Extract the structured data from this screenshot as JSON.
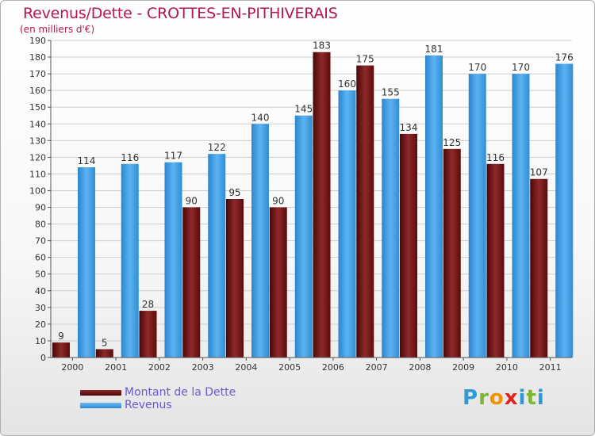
{
  "title": "Revenus/Dette - CROTTES-EN-PITHIVERAIS",
  "subtitle": "(en milliers d'€)",
  "logo_text": "Proxiti",
  "colors": {
    "dette": "#7a0f0f",
    "revenus": "#3d9ee5",
    "title": "#b5174a",
    "legend_text": "#6a5acd"
  },
  "chart_data": {
    "type": "bar",
    "categories": [
      "2000",
      "2001",
      "2002",
      "2003",
      "2004",
      "2005",
      "2006",
      "2007",
      "2008",
      "2009",
      "2010",
      "2011"
    ],
    "series": [
      {
        "name": "Montant de la Dette",
        "values": [
          9,
          5,
          28,
          90,
          95,
          90,
          183,
          175,
          134,
          125,
          116,
          107
        ]
      },
      {
        "name": "Revenus",
        "values": [
          114,
          116,
          117,
          122,
          140,
          145,
          160,
          155,
          181,
          170,
          170,
          176
        ]
      }
    ],
    "ylim": [
      0,
      190
    ],
    "yticks": [
      0,
      10,
      20,
      30,
      40,
      50,
      60,
      70,
      80,
      90,
      100,
      110,
      120,
      130,
      140,
      150,
      160,
      170,
      180,
      190
    ],
    "grid": true,
    "legend": "bottom-left"
  }
}
